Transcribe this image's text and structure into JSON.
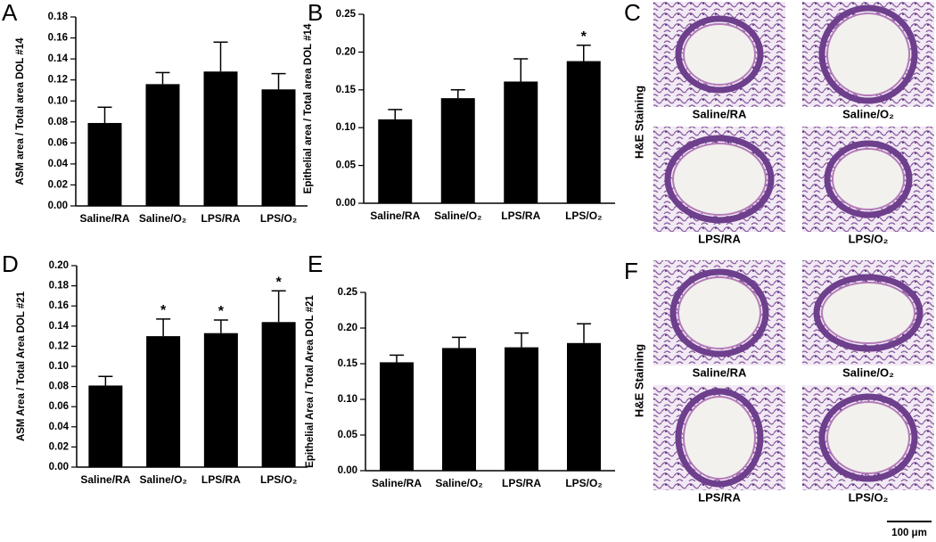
{
  "chart_data": [
    {
      "type": "bar",
      "label": "A",
      "ylabel": "ASM area / Total area DOL #14",
      "categories": [
        "Saline/RA",
        "Saline/O₂",
        "LPS/RA",
        "LPS/O₂"
      ],
      "values": [
        0.079,
        0.116,
        0.128,
        0.111
      ],
      "errors": [
        0.015,
        0.011,
        0.028,
        0.015
      ],
      "color": "#000000",
      "ylim": [
        0,
        0.18
      ],
      "yticks": [
        {
          "value": 0,
          "label": "0.00"
        },
        {
          "value": 0.02,
          "label": "0.02"
        },
        {
          "value": 0.04,
          "label": "0.04"
        },
        {
          "value": 0.06,
          "label": "0.06"
        },
        {
          "value": 0.08,
          "label": "0.08"
        },
        {
          "value": 0.1,
          "label": "0.10"
        },
        {
          "value": 0.12,
          "label": "0.12"
        },
        {
          "value": 0.14,
          "label": "0.14"
        },
        {
          "value": 0.16,
          "label": "0.16"
        },
        {
          "value": 0.18,
          "label": "0.18"
        }
      ]
    },
    {
      "type": "bar",
      "label": "B",
      "ylabel": "Epithelial area / Total area DOL #14",
      "categories": [
        "Saline/RA",
        "Saline/O₂",
        "LPS/RA",
        "LPS/O₂"
      ],
      "values": [
        0.111,
        0.139,
        0.161,
        0.188
      ],
      "errors": [
        0.013,
        0.011,
        0.03,
        0.021
      ],
      "annotations": [
        null,
        null,
        null,
        "*"
      ],
      "color": "#000000",
      "ylim": [
        0,
        0.25
      ],
      "yticks": [
        {
          "value": 0,
          "label": "0.00"
        },
        {
          "value": 0.05,
          "label": "0.05"
        },
        {
          "value": 0.1,
          "label": "0.10"
        },
        {
          "value": 0.15,
          "label": "0.15"
        },
        {
          "value": 0.2,
          "label": "0.20"
        },
        {
          "value": 0.25,
          "label": "0.25"
        }
      ]
    },
    {
      "type": "bar",
      "label": "D",
      "ylabel": "ASM Area / Total Area DOL #21",
      "categories": [
        "Saline/RA",
        "Saline/O₂",
        "LPS/RA",
        "LPS/O₂"
      ],
      "values": [
        0.081,
        0.13,
        0.133,
        0.144
      ],
      "errors": [
        0.009,
        0.017,
        0.013,
        0.031
      ],
      "annotations": [
        null,
        "*",
        "*",
        "*"
      ],
      "color": "#000000",
      "ylim": [
        0,
        0.2
      ],
      "yticks": [
        {
          "value": 0,
          "label": "0.00"
        },
        {
          "value": 0.02,
          "label": "0.02"
        },
        {
          "value": 0.04,
          "label": "0.04"
        },
        {
          "value": 0.06,
          "label": "0.06"
        },
        {
          "value": 0.08,
          "label": "0.08"
        },
        {
          "value": 0.1,
          "label": "0.10"
        },
        {
          "value": 0.12,
          "label": "0.12"
        },
        {
          "value": 0.14,
          "label": "0.14"
        },
        {
          "value": 0.16,
          "label": "0.16"
        },
        {
          "value": 0.18,
          "label": "0.18"
        },
        {
          "value": 0.2,
          "label": "0.20"
        }
      ]
    },
    {
      "type": "bar",
      "label": "E",
      "ylabel": "Epithelial Area / Total Area DOL #21",
      "categories": [
        "Saline/RA",
        "Saline/O₂",
        "LPS/RA",
        "LPS/O₂"
      ],
      "values": [
        0.152,
        0.172,
        0.173,
        0.179
      ],
      "errors": [
        0.01,
        0.015,
        0.02,
        0.027
      ],
      "color": "#000000",
      "ylim": [
        0,
        0.25
      ],
      "yticks": [
        {
          "value": 0,
          "label": "0.00"
        },
        {
          "value": 0.05,
          "label": "0.05"
        },
        {
          "value": 0.1,
          "label": "0.10"
        },
        {
          "value": 0.15,
          "label": "0.15"
        },
        {
          "value": 0.2,
          "label": "0.20"
        },
        {
          "value": 0.25,
          "label": "0.25"
        }
      ]
    }
  ],
  "image_panels": [
    {
      "label": "C",
      "stain": "H&E Staining",
      "captions": [
        "Saline/RA",
        "Saline/O₂",
        "LPS/RA",
        "LPS/O₂"
      ]
    },
    {
      "label": "F",
      "stain": "H&E Staining",
      "captions": [
        "Saline/RA",
        "Saline/O₂",
        "LPS/RA",
        "LPS/O₂"
      ]
    }
  ],
  "scale_bar": "100 μm"
}
